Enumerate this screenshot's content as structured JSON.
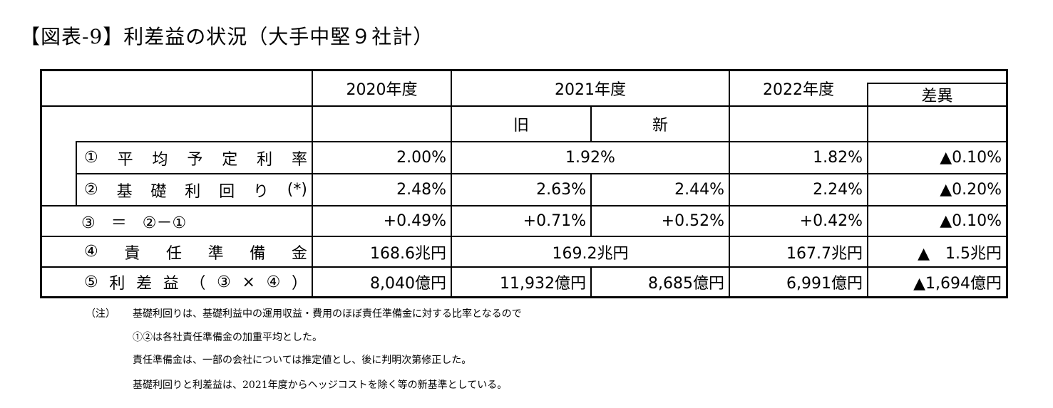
{
  "title": "【図表-9】利差益の状況（大手中堅９社計）",
  "header": {
    "y2020": "2020年度",
    "y2021": "2021年度",
    "y2022": "2022年度",
    "diff": "差異",
    "old": "旧",
    "new": "新"
  },
  "rows": [
    {
      "label": [
        "①",
        "平",
        "均",
        "予",
        "定",
        "利",
        "率"
      ],
      "v2020": "2.00%",
      "v2021": "1.92%",
      "v2022": "1.82%",
      "diff": "▲0.10%"
    },
    {
      "label": [
        "②",
        "基",
        "礎",
        "利",
        "回",
        "り",
        "(*)"
      ],
      "v2020": "2.48%",
      "v2021_old": "2.63%",
      "v2021_new": "2.44%",
      "v2022": "2.24%",
      "diff": "▲0.20%"
    },
    {
      "label": "③　＝　②－①",
      "v2020": "+0.49%",
      "v2021_old": "+0.71%",
      "v2021_new": "+0.52%",
      "v2022": "+0.42%",
      "diff": "▲0.10%"
    },
    {
      "label": [
        "④",
        "責",
        "任",
        "準",
        "備",
        "金"
      ],
      "v2020": "168.6兆円",
      "v2021": "169.2兆円",
      "v2022": "167.7兆円",
      "diff": "▲　1.5兆円"
    },
    {
      "label": [
        "⑤",
        "利",
        "差",
        "益",
        "（",
        "③",
        "×",
        "④",
        "）"
      ],
      "v2020": "8,040億円",
      "v2021_old": "11,932億円",
      "v2021_new": "8,685億円",
      "v2022": "6,991億円",
      "diff": "▲1,694億円"
    }
  ],
  "notes": {
    "marker": "（注）",
    "lines": [
      "基礎利回りは、基礎利益中の運用収益・費用のほぼ責任準備金に対する比率となるので",
      "①②は各社責任準備金の加重平均とした。",
      "責任準備金は、一部の会社については推定値とし、後に判明次第修正した。",
      "基礎利回りと利差益は、2021年度からヘッジコストを除く等の新基準としている。"
    ]
  }
}
